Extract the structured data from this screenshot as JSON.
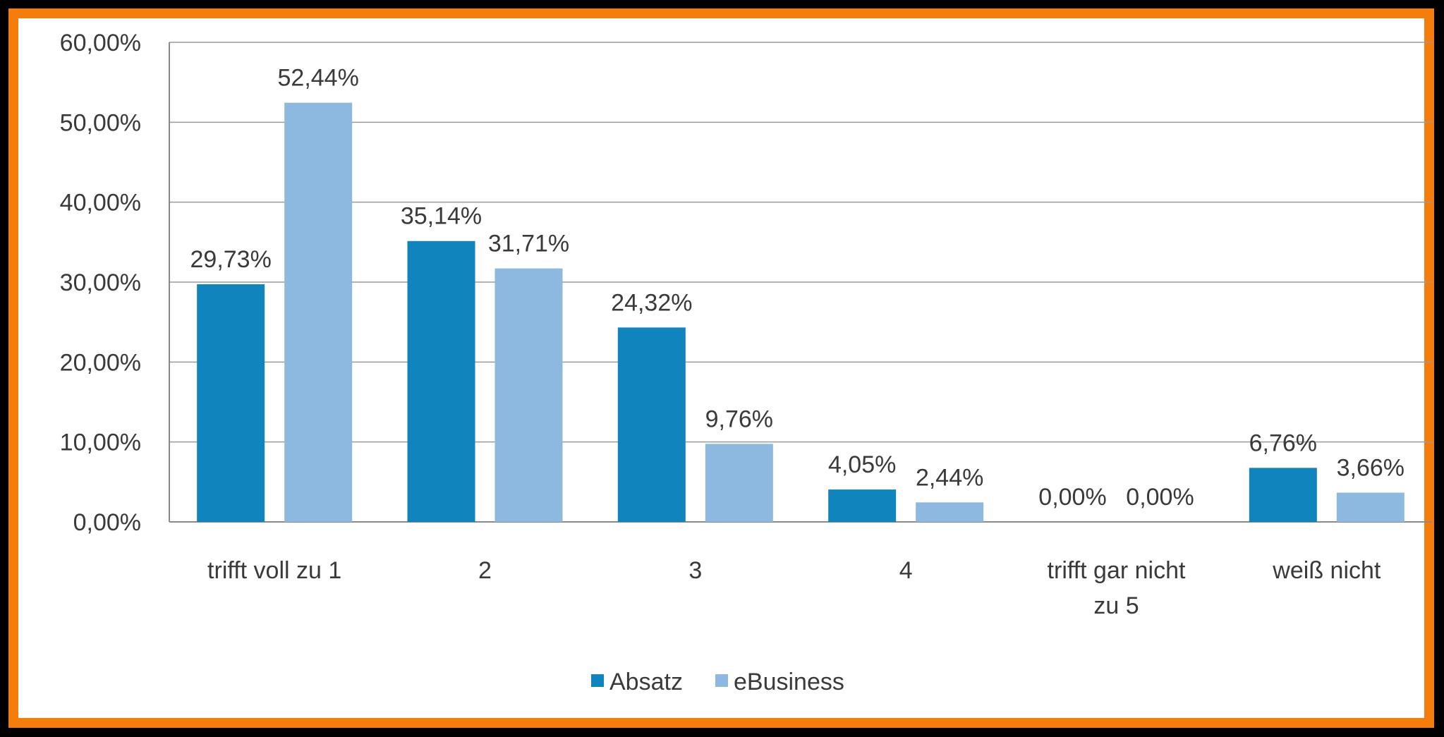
{
  "chart_data": {
    "type": "bar",
    "title": "",
    "xlabel": "",
    "ylabel": "",
    "categories": [
      [
        "trifft voll zu 1"
      ],
      [
        "2"
      ],
      [
        "3"
      ],
      [
        "4"
      ],
      [
        "trifft gar nicht",
        "zu 5"
      ],
      [
        "weiß nicht"
      ]
    ],
    "series": [
      {
        "name": "Absatz",
        "color": "#0f84bd",
        "values": [
          29.73,
          35.14,
          24.32,
          4.05,
          0.0,
          6.76
        ],
        "labels": [
          "29,73%",
          "35,14%",
          "24,32%",
          "4,05%",
          "0,00%",
          "6,76%"
        ]
      },
      {
        "name": "eBusiness",
        "color": "#8db9e0",
        "values": [
          52.44,
          31.71,
          9.76,
          2.44,
          0.0,
          3.66
        ],
        "labels": [
          "52,44%",
          "31,71%",
          "9,76%",
          "2,44%",
          "0,00%",
          "3,66%"
        ]
      }
    ],
    "y_ticks": [
      "0,00%",
      "10,00%",
      "20,00%",
      "30,00%",
      "40,00%",
      "50,00%",
      "60,00%"
    ],
    "ylim": [
      0,
      60
    ],
    "grid": true,
    "legend_position": "bottom-center",
    "frame_color": "#f47d0b"
  }
}
